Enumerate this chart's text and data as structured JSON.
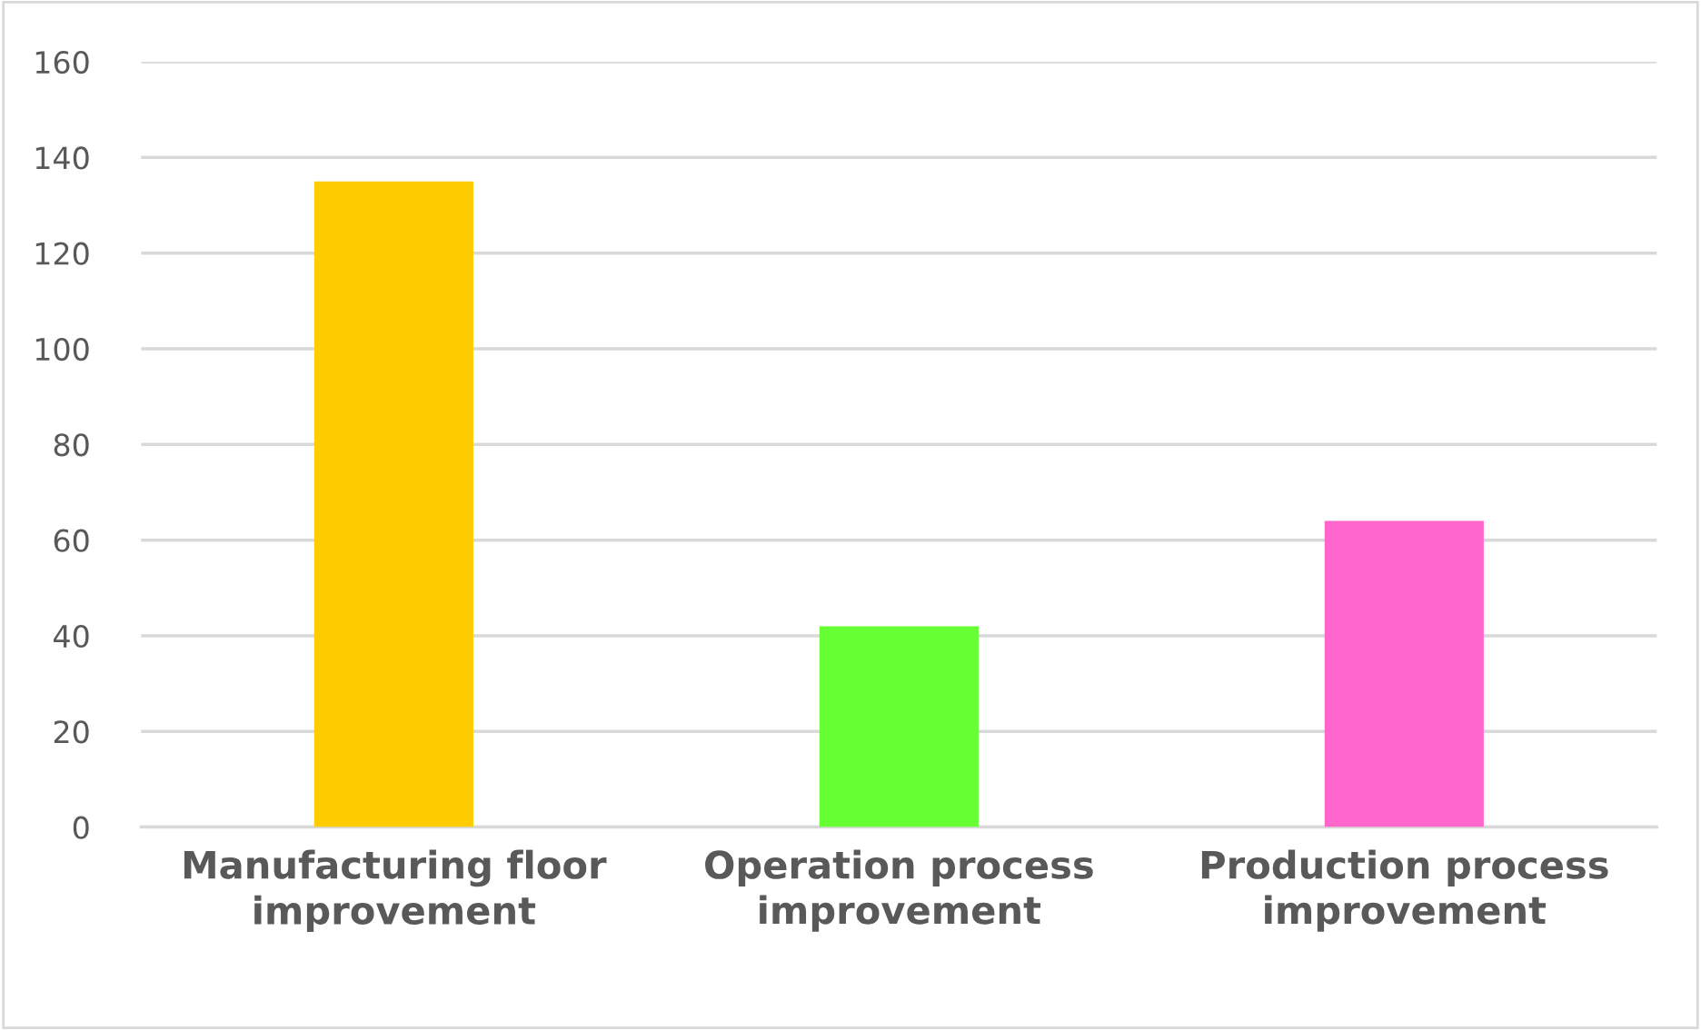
{
  "chart_data": {
    "type": "bar",
    "categories": [
      "Manufacturing floor\nimprovement",
      "Operation process\nimprovement",
      "Production process\nimprovement"
    ],
    "values": [
      135,
      42,
      64
    ],
    "colors": [
      "#ffcc00",
      "#66ff33",
      "#ff66cc"
    ],
    "ylim": [
      0,
      160
    ],
    "yticks": [
      0,
      20,
      40,
      60,
      80,
      100,
      120,
      140,
      160
    ],
    "grid": "y",
    "legend": false
  }
}
